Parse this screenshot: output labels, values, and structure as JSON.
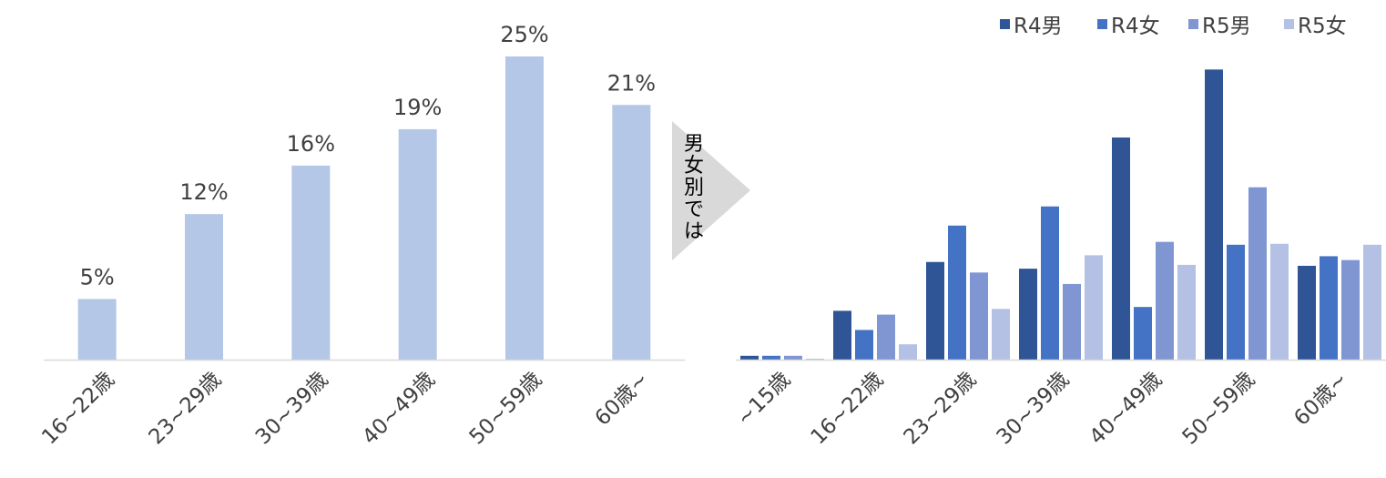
{
  "chart_data": [
    {
      "type": "bar",
      "categories": [
        "16~22歳",
        "23~29歳",
        "30~39歳",
        "40~49歳",
        "50~59歳",
        "60歳~"
      ],
      "values": [
        5,
        12,
        16,
        19,
        25,
        21
      ],
      "data_labels": [
        "5%",
        "12%",
        "16%",
        "19%",
        "25%",
        "21%"
      ],
      "ylim": [
        0,
        25
      ],
      "grid": false,
      "legend": "none",
      "color": "#b4c7e7"
    },
    {
      "type": "bar",
      "categories": [
        "~15歳",
        "16~22歳",
        "23~29歳",
        "30~39歳",
        "40~49歳",
        "50~59歳",
        "60歳~"
      ],
      "series": [
        {
          "name": "R4男",
          "color": "#2f5597",
          "values": [
            0.4,
            5.1,
            10.2,
            9.5,
            23.2,
            30.3,
            9.8
          ]
        },
        {
          "name": "R4女",
          "color": "#4472c4",
          "values": [
            0.4,
            3.1,
            14.0,
            16.0,
            5.5,
            12.0,
            10.8
          ]
        },
        {
          "name": "R5男",
          "color": "#7f96d2",
          "values": [
            0.4,
            4.7,
            9.1,
            7.9,
            12.3,
            18.0,
            10.4
          ]
        },
        {
          "name": "R5女",
          "color": "#b4c1e4",
          "values": [
            0.1,
            1.6,
            5.3,
            10.9,
            9.9,
            12.1,
            12.0
          ]
        }
      ],
      "ylim": [
        0,
        31
      ],
      "grid": false,
      "legend": "top-right"
    }
  ],
  "transition": {
    "text": "男女別では"
  }
}
